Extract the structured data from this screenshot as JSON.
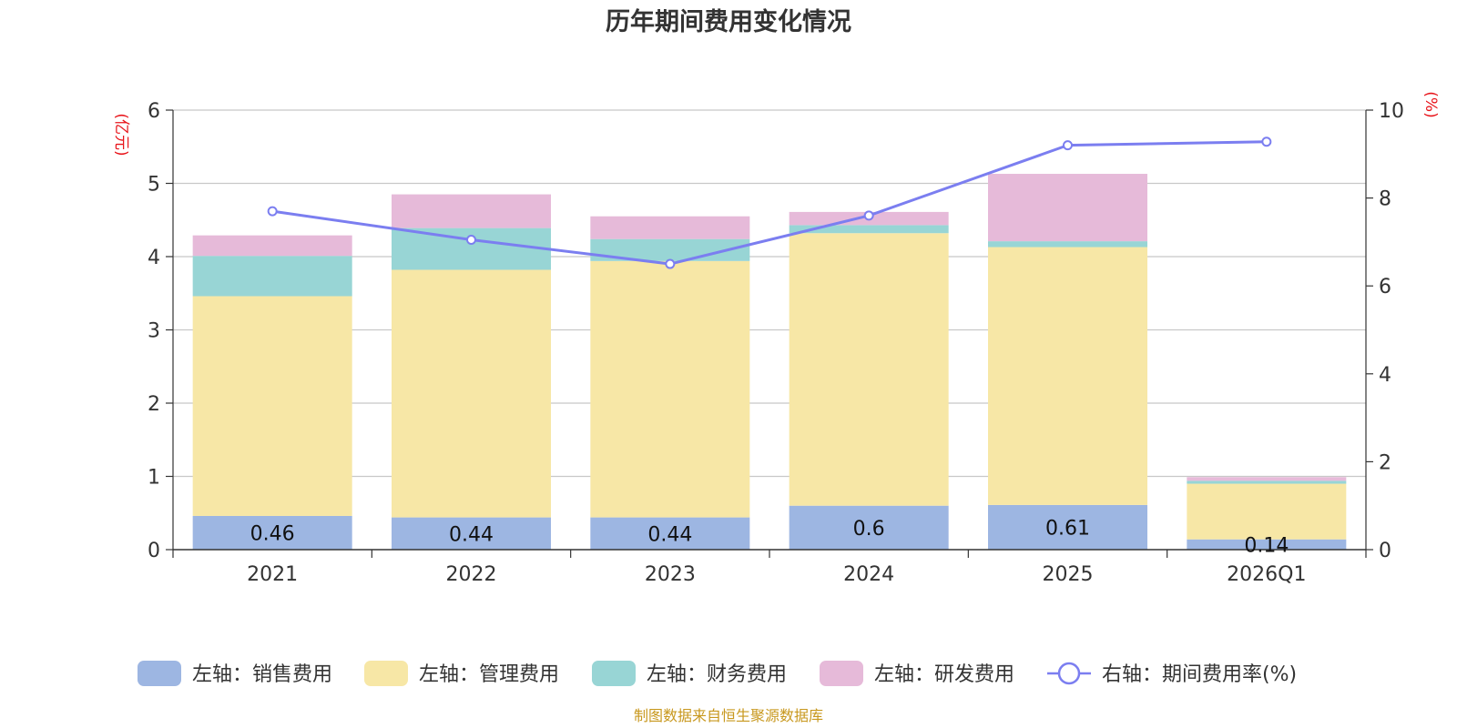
{
  "chart_data": {
    "type": "bar",
    "stacked": true,
    "title": "历年期间费用变化情况",
    "categories": [
      "2021",
      "2022",
      "2023",
      "2024",
      "2025",
      "2026Q1"
    ],
    "left_axis": {
      "unit": "(亿元)",
      "min": 0,
      "max": 6,
      "ticks": [
        "0",
        "1",
        "2",
        "3",
        "4",
        "5",
        "6"
      ]
    },
    "right_axis": {
      "unit": "(%)",
      "min": 0,
      "max": 10,
      "ticks": [
        "0",
        "2",
        "4",
        "6",
        "8",
        "10"
      ]
    },
    "series": [
      {
        "name": "左轴：销售费用",
        "axis": "left",
        "type": "bar",
        "color": "#9db6e2",
        "values": [
          0.46,
          0.44,
          0.44,
          0.6,
          0.61,
          0.14
        ],
        "labels": [
          "0.46",
          "0.44",
          "0.44",
          "0.6",
          "0.61",
          "0.14"
        ]
      },
      {
        "name": "左轴：管理费用",
        "axis": "left",
        "type": "bar",
        "color": "#f7e7a6",
        "values": [
          3.0,
          3.38,
          3.5,
          3.72,
          3.52,
          0.76
        ]
      },
      {
        "name": "左轴：财务费用",
        "axis": "left",
        "type": "bar",
        "color": "#98d5d5",
        "values": [
          0.55,
          0.57,
          0.3,
          0.11,
          0.08,
          0.04
        ]
      },
      {
        "name": "左轴：研发费用",
        "axis": "left",
        "type": "bar",
        "color": "#e6bad9",
        "values": [
          0.28,
          0.46,
          0.31,
          0.18,
          0.92,
          0.05
        ]
      },
      {
        "name": "右轴：期间费用率(%)",
        "axis": "right",
        "type": "line",
        "color": "#7b7ef0",
        "values": [
          7.7,
          7.05,
          6.5,
          7.6,
          9.2,
          9.28
        ]
      }
    ],
    "grid": true,
    "legend_position": "bottom"
  },
  "source": "制图数据来自恒生聚源数据库"
}
